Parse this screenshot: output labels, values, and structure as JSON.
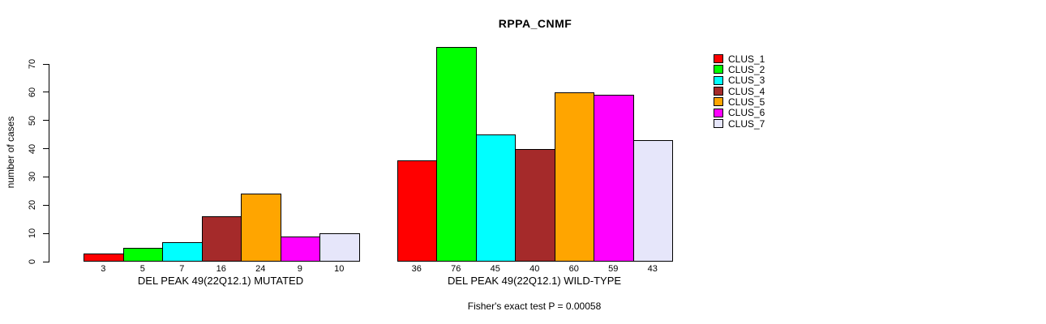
{
  "title": "RPPA_CNMF",
  "footnote": "Fisher's exact test P = 0.00058",
  "y_axis": {
    "label": "number of cases",
    "ticks": [
      0,
      10,
      20,
      30,
      40,
      50,
      60,
      70
    ]
  },
  "legend": {
    "position": "right",
    "items": [
      {
        "label": "CLUS_1",
        "color": "#ff0000"
      },
      {
        "label": "CLUS_2",
        "color": "#00ff00"
      },
      {
        "label": "CLUS_3",
        "color": "#00ffff"
      },
      {
        "label": "CLUS_4",
        "color": "#a52a2a"
      },
      {
        "label": "CLUS_5",
        "color": "#ffa500"
      },
      {
        "label": "CLUS_6",
        "color": "#ff00ff"
      },
      {
        "label": "CLUS_7",
        "color": "#e6e6fa"
      }
    ]
  },
  "chart_data": {
    "type": "bar",
    "title": "RPPA_CNMF",
    "xlabel": "",
    "ylabel": "number of cases",
    "ylim": [
      0,
      70
    ],
    "yticks": [
      0,
      10,
      20,
      30,
      40,
      50,
      60,
      70
    ],
    "grid": false,
    "legend_position": "right",
    "bar_value_labels": true,
    "categories": [
      "DEL PEAK 49(22Q12.1) MUTATED",
      "DEL PEAK 49(22Q12.1) WILD-TYPE"
    ],
    "series": [
      {
        "name": "CLUS_1",
        "color": "#ff0000",
        "values": [
          3,
          36
        ]
      },
      {
        "name": "CLUS_2",
        "color": "#00ff00",
        "values": [
          5,
          76
        ]
      },
      {
        "name": "CLUS_3",
        "color": "#00ffff",
        "values": [
          7,
          45
        ]
      },
      {
        "name": "CLUS_4",
        "color": "#a52a2a",
        "values": [
          16,
          40
        ]
      },
      {
        "name": "CLUS_5",
        "color": "#ffa500",
        "values": [
          24,
          60
        ]
      },
      {
        "name": "CLUS_6",
        "color": "#ff00ff",
        "values": [
          9,
          59
        ]
      },
      {
        "name": "CLUS_7",
        "color": "#e6e6fa",
        "values": [
          10,
          43
        ]
      }
    ],
    "annotation": "Fisher's exact test P = 0.00058"
  }
}
